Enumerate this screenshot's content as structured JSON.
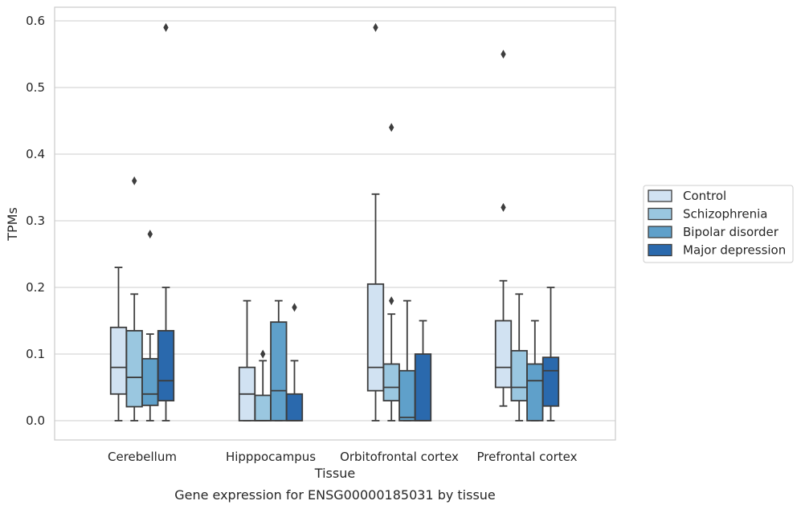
{
  "chart_data": {
    "type": "box",
    "title": "",
    "caption": "Gene expression for ENSG00000185031 by tissue",
    "xlabel": "Tissue",
    "ylabel": "TPMs",
    "ylim": [
      -0.028,
      0.62
    ],
    "yticks": [
      "0.0",
      "0.1",
      "0.2",
      "0.3",
      "0.4",
      "0.5",
      "0.6"
    ],
    "grid": "horizontal",
    "legend_position": "right",
    "categories": [
      "Cerebellum",
      "Hipppocampus",
      "Orbitofrontal cortex",
      "Prefrontal cortex"
    ],
    "series": [
      {
        "name": "Control",
        "color": "#d1e2f2",
        "boxes": [
          {
            "whisker_low": 0.0,
            "q1": 0.04,
            "median": 0.08,
            "q3": 0.14,
            "whisker_high": 0.23,
            "outliers": []
          },
          {
            "whisker_low": 0.0,
            "q1": 0.0,
            "median": 0.04,
            "q3": 0.08,
            "whisker_high": 0.18,
            "outliers": []
          },
          {
            "whisker_low": 0.0,
            "q1": 0.045,
            "median": 0.08,
            "q3": 0.205,
            "whisker_high": 0.34,
            "outliers": [
              0.59
            ]
          },
          {
            "whisker_low": 0.022,
            "q1": 0.05,
            "median": 0.08,
            "q3": 0.15,
            "whisker_high": 0.21,
            "outliers": [
              0.32,
              0.55
            ]
          }
        ]
      },
      {
        "name": "Schizophrenia",
        "color": "#9ac7e0",
        "boxes": [
          {
            "whisker_low": 0.0,
            "q1": 0.021,
            "median": 0.065,
            "q3": 0.135,
            "whisker_high": 0.19,
            "outliers": [
              0.36
            ]
          },
          {
            "whisker_low": 0.0,
            "q1": 0.0,
            "median": 0.0,
            "q3": 0.038,
            "whisker_high": 0.09,
            "outliers": [
              0.1
            ]
          },
          {
            "whisker_low": 0.0,
            "q1": 0.03,
            "median": 0.05,
            "q3": 0.085,
            "whisker_high": 0.16,
            "outliers": [
              0.18,
              0.44
            ]
          },
          {
            "whisker_low": 0.0,
            "q1": 0.03,
            "median": 0.05,
            "q3": 0.105,
            "whisker_high": 0.19,
            "outliers": []
          }
        ]
      },
      {
        "name": "Bipolar disorder",
        "color": "#5fa0ca",
        "boxes": [
          {
            "whisker_low": 0.0,
            "q1": 0.023,
            "median": 0.04,
            "q3": 0.093,
            "whisker_high": 0.13,
            "outliers": [
              0.28
            ]
          },
          {
            "whisker_low": 0.0,
            "q1": 0.0,
            "median": 0.045,
            "q3": 0.148,
            "whisker_high": 0.18,
            "outliers": []
          },
          {
            "whisker_low": 0.0,
            "q1": 0.0,
            "median": 0.005,
            "q3": 0.075,
            "whisker_high": 0.18,
            "outliers": []
          },
          {
            "whisker_low": 0.0,
            "q1": 0.0,
            "median": 0.06,
            "q3": 0.085,
            "whisker_high": 0.15,
            "outliers": []
          }
        ]
      },
      {
        "name": "Major depression",
        "color": "#2a69ad",
        "boxes": [
          {
            "whisker_low": 0.0,
            "q1": 0.03,
            "median": 0.06,
            "q3": 0.135,
            "whisker_high": 0.2,
            "outliers": [
              0.59
            ]
          },
          {
            "whisker_low": 0.0,
            "q1": 0.0,
            "median": 0.0,
            "q3": 0.04,
            "whisker_high": 0.09,
            "outliers": [
              0.17
            ]
          },
          {
            "whisker_low": 0.0,
            "q1": 0.0,
            "median": 0.0,
            "q3": 0.1,
            "whisker_high": 0.15,
            "outliers": []
          },
          {
            "whisker_low": 0.0,
            "q1": 0.022,
            "median": 0.075,
            "q3": 0.095,
            "whisker_high": 0.2,
            "outliers": []
          }
        ]
      }
    ]
  }
}
